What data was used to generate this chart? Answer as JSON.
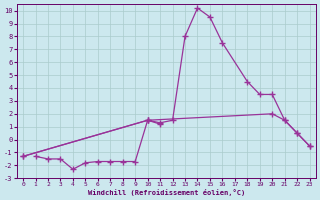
{
  "xlabel": "Windchill (Refroidissement éolien,°C)",
  "background_color": "#cce8ee",
  "grid_color": "#aacccc",
  "line_color": "#993399",
  "xlim": [
    -0.5,
    23.5
  ],
  "ylim": [
    -3,
    10.5
  ],
  "xticks": [
    0,
    1,
    2,
    3,
    4,
    5,
    6,
    7,
    8,
    9,
    10,
    11,
    12,
    13,
    14,
    15,
    16,
    17,
    18,
    19,
    20,
    21,
    22,
    23
  ],
  "yticks": [
    -3,
    -2,
    -1,
    0,
    1,
    2,
    3,
    4,
    5,
    6,
    7,
    8,
    9,
    10
  ],
  "line1_x": [
    1,
    2,
    3,
    4,
    5,
    6,
    7,
    8,
    9,
    10,
    11
  ],
  "line1_y": [
    -1.3,
    -1.5,
    -1.5,
    -2.3,
    -1.8,
    -1.7,
    -1.7,
    -1.7,
    -1.7,
    1.5,
    1.2
  ],
  "line2_x": [
    0,
    10,
    20,
    21,
    22,
    23
  ],
  "line2_y": [
    -1.3,
    1.5,
    2.0,
    1.5,
    0.5,
    -0.5
  ],
  "line3_x": [
    0,
    10,
    11,
    12,
    13,
    14,
    15,
    16,
    18,
    19,
    20,
    21,
    22,
    23
  ],
  "line3_y": [
    -1.3,
    1.5,
    1.3,
    1.5,
    8.0,
    10.2,
    9.5,
    7.5,
    4.5,
    3.5,
    3.5,
    1.5,
    0.5,
    -0.5
  ]
}
